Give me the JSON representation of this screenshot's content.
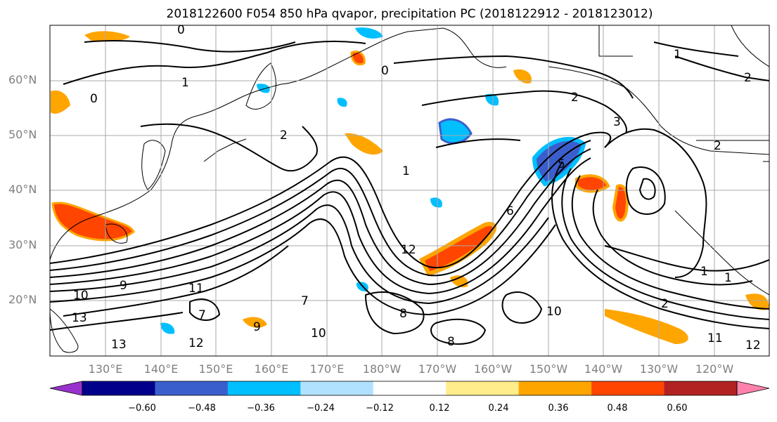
{
  "title": "2018122600 F054 850 hPa qvapor, precipitation PC (2018122912 - 2018123012)",
  "lat_labels": [
    "60°N",
    "50°N",
    "40°N",
    "30°N",
    "20°N"
  ],
  "lon_labels": [
    "130°E",
    "140°E",
    "150°E",
    "160°E",
    "170°E",
    "180°W",
    "170°W",
    "160°W",
    "150°W",
    "140°W",
    "130°W",
    "120°W"
  ],
  "colorbar": {
    "colors": [
      "#9932cc",
      "#00008b",
      "#3a5fcd",
      "#00bfff",
      "#b0e2ff",
      "#ffffff",
      "#ffec8b",
      "#ffa500",
      "#ff4500",
      "#b22222",
      "#ff82ab"
    ],
    "tick_labels": [
      "−0.60",
      "−0.48",
      "−0.36",
      "−0.24",
      "−0.12",
      "0.12",
      "0.24",
      "0.36",
      "0.48",
      "0.60"
    ]
  },
  "contour_labels": [
    "0",
    "0",
    "0",
    "1",
    "1",
    "1",
    "1",
    "1",
    "2",
    "2",
    "2",
    "2",
    "2",
    "3",
    "5",
    "6",
    "7",
    "7",
    "8",
    "8",
    "9",
    "9",
    "10",
    "10",
    "10",
    "11",
    "11",
    "12",
    "12",
    "12",
    "13",
    "13"
  ]
}
